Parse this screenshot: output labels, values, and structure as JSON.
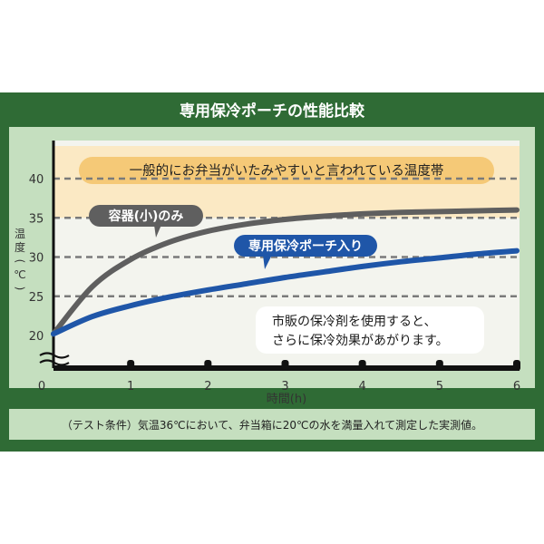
{
  "chart_data": {
    "type": "line",
    "title": "専用保冷ポーチの性能比較",
    "xlabel": "時間(h)",
    "ylabel": [
      "温",
      "度",
      "(",
      "℃",
      ")"
    ],
    "xlim": [
      0,
      6
    ],
    "ylim": [
      20,
      40
    ],
    "x_ticks": [
      "0",
      "1",
      "2",
      "3",
      "4",
      "5",
      "6"
    ],
    "y_ticks": [
      "20",
      "25",
      "30",
      "35",
      "40"
    ],
    "grid": true,
    "band": {
      "range": [
        35,
        40
      ],
      "label": "一般的にお弁当がいたみやすいと言われている温度帯"
    },
    "series": [
      {
        "name": "容器(小)のみ",
        "x": [
          0,
          0.5,
          1,
          1.5,
          2,
          2.5,
          3,
          3.5,
          4,
          4.5,
          5,
          5.5,
          6
        ],
        "y": [
          20.2,
          26.2,
          29.7,
          31.9,
          33.3,
          34.2,
          34.8,
          35.2,
          35.5,
          35.7,
          35.8,
          35.9,
          36.0
        ]
      },
      {
        "name": "専用保冷ポーチ入り",
        "x": [
          0,
          0.5,
          1,
          1.5,
          2,
          2.5,
          3,
          3.5,
          4,
          4.5,
          5,
          5.5,
          6
        ],
        "y": [
          20.2,
          22.4,
          23.8,
          24.9,
          25.8,
          26.6,
          27.4,
          28.1,
          28.8,
          29.4,
          29.9,
          30.4,
          30.8
        ]
      }
    ],
    "annotation": [
      "市販の保冷剤を使用すると、",
      "さらに保冷効果があがります。"
    ],
    "footnote": "（テスト条件）気温36℃において、弁当箱に20℃の水を満量入れて測定した実測値。"
  },
  "colors": {
    "frame": "#2f6b35",
    "panel": "#c5dfbf",
    "band": "#fbe9c4",
    "band_label": "#f5c977",
    "grid": "#7a7a7a",
    "series_small": "#5f5f5f",
    "series_pouch": "#1f56a8",
    "note_box": "#ffffff"
  }
}
